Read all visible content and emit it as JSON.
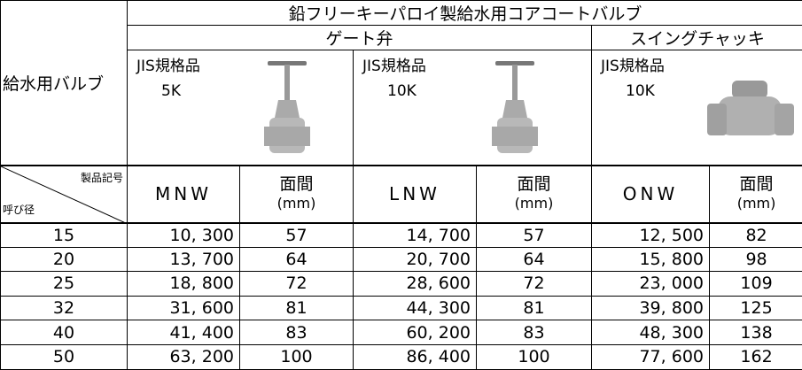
{
  "header": {
    "title": "鉛フリーキーパロイ製給水用コアコートバルブ",
    "row_label": "給水用バルブ",
    "groups": [
      "ゲート弁",
      "スイングチャッキ"
    ],
    "products": [
      {
        "standard": "JIS規格品",
        "class": "5K"
      },
      {
        "standard": "JIS規格品",
        "class": "10K"
      },
      {
        "standard": "JIS規格品",
        "class": "10K"
      }
    ],
    "code_label": "製品記号",
    "size_label": "呼び径",
    "columns": [
      {
        "code": "MNW",
        "dim": "面間",
        "unit": "(mm)"
      },
      {
        "code": "LNW",
        "dim": "面間",
        "unit": "(mm)"
      },
      {
        "code": "ONW",
        "dim": "面間",
        "unit": "(mm)"
      }
    ]
  },
  "table": {
    "rows": [
      [
        "15",
        "10, 300",
        "57",
        "14, 700",
        "57",
        "12, 500",
        "82"
      ],
      [
        "20",
        "13, 700",
        "64",
        "20, 700",
        "64",
        "15, 800",
        "98"
      ],
      [
        "25",
        "18, 800",
        "72",
        "28, 600",
        "72",
        "23, 000",
        "109"
      ],
      [
        "32",
        "31, 600",
        "81",
        "44, 300",
        "81",
        "39, 800",
        "125"
      ],
      [
        "40",
        "41, 400",
        "83",
        "60, 200",
        "83",
        "48, 300",
        "138"
      ],
      [
        "50",
        "63, 200",
        "100",
        "86, 400",
        "100",
        "77, 600",
        "162"
      ]
    ]
  }
}
